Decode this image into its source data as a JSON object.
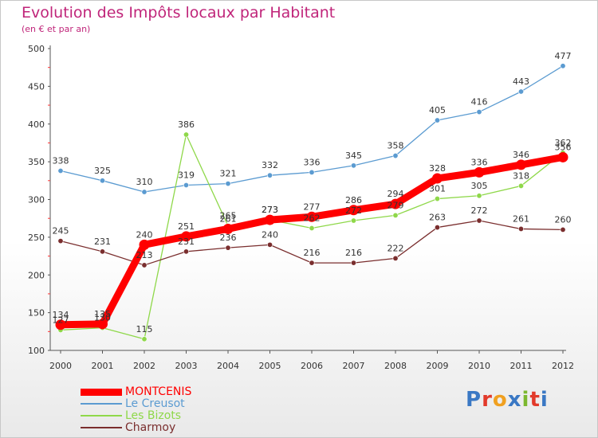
{
  "header": {
    "title": "Evolution des Impôts locaux par Habitant",
    "subtitle": "(en € et par an)"
  },
  "logo": {
    "text": "Proxiti",
    "colors": [
      "#3a78c4",
      "#e23a2b",
      "#f0a020",
      "#3a78c4",
      "#7cb82f",
      "#e23a2b",
      "#3a78c4"
    ]
  },
  "chart_data": {
    "type": "line",
    "title": "Evolution des Impôts locaux par Habitant",
    "subtitle": "(en € et par an)",
    "xlabel": "",
    "ylabel": "",
    "ylim": [
      100,
      500
    ],
    "yticks": [
      100,
      150,
      200,
      250,
      300,
      350,
      400,
      450,
      500
    ],
    "grid": false,
    "legend_position": "bottom-left",
    "categories": [
      "2000",
      "2001",
      "2002",
      "2003",
      "2004",
      "2005",
      "2006",
      "2007",
      "2008",
      "2009",
      "2010",
      "2011",
      "2012"
    ],
    "series": [
      {
        "name": "Le Creusot",
        "color": "#5b9bd1",
        "values": [
          338,
          325,
          310,
          319,
          321,
          332,
          336,
          345,
          358,
          405,
          416,
          443,
          477
        ],
        "labels": [
          "338",
          "325",
          "310",
          "319",
          "321",
          "332",
          "336",
          "345",
          "358",
          "405",
          "416",
          "443",
          "477"
        ]
      },
      {
        "name": "Les Bizots",
        "color": "#8fd84a",
        "values": [
          127,
          130,
          115,
          386,
          265,
          273,
          262,
          272,
          279,
          301,
          305,
          318,
          362
        ],
        "labels": [
          "127",
          "130",
          "115",
          "386",
          "265",
          "273",
          "262",
          "272",
          "279",
          "301",
          "305",
          "318",
          "362"
        ]
      },
      {
        "name": "Charmoy",
        "color": "#7a2e2e",
        "values": [
          245,
          231,
          213,
          231,
          236,
          240,
          216,
          216,
          222,
          263,
          272,
          261,
          260
        ],
        "labels": [
          "245",
          "231",
          "213",
          "231",
          "236",
          "240",
          "216",
          "216",
          "222",
          "263",
          "272",
          "261",
          "260"
        ]
      },
      {
        "name": "MONTCENIS",
        "color": "#ff0000",
        "values": [
          134,
          135,
          240,
          251,
          261,
          273,
          277,
          286,
          294,
          328,
          336,
          346,
          356
        ],
        "labels": [
          "134",
          "135",
          "240",
          "251",
          "261",
          "273",
          "277",
          "286",
          "294",
          "328",
          "336",
          "346",
          "356"
        ]
      }
    ]
  },
  "legend": {
    "items": [
      {
        "label": "MONTCENIS",
        "color": "#ff0000",
        "width": 9
      },
      {
        "label": "Le Creusot",
        "color": "#5b9bd1",
        "width": 2
      },
      {
        "label": "Les Bizots",
        "color": "#8fd84a",
        "width": 2
      },
      {
        "label": "Charmoy",
        "color": "#7a2e2e",
        "width": 2
      }
    ]
  }
}
